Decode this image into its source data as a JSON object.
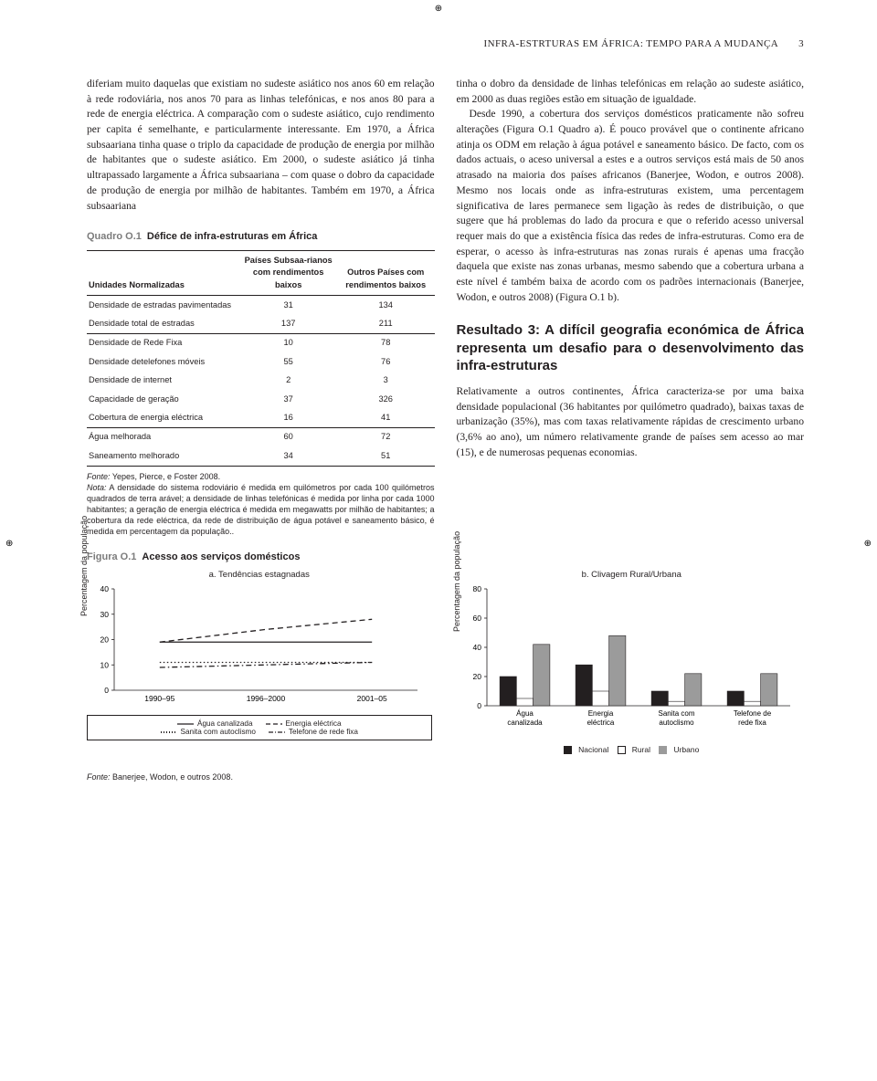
{
  "header": {
    "title": "INFRA-ESTRTURAS EM ÁFRICA: TEMPO PARA A MUDANÇA",
    "page": "3"
  },
  "col1": {
    "para": "diferiam muito daquelas que existiam no sudeste asiático nos anos 60 em relação à rede rodoviária, nos anos 70 para as linhas telefónicas, e nos anos 80 para a rede de energia eléctrica. A comparação com o sudeste asiático, cujo rendimento per capita é semelhante, e particularmente interessante. Em 1970, a África subsaariana tinha quase o triplo da capacidade de produção de energia por milhão de habitantes que o sudeste asiático. Em 2000, o sudeste asiático já tinha ultrapassado largamente a África subsaariana – com quase o dobro da capacidade de produção de energia por milhão de habitantes. Também em 1970, a África subsaariana"
  },
  "quadro": {
    "label_num": "Quadro O.1",
    "label_title": "Défice de infra-estruturas em África",
    "head_c1": "Unidades Normalizadas",
    "head_c2": "Países Subsaa-rianos com rendimentos baixos",
    "head_c3": "Outros Países com rendimentos baixos",
    "rows": [
      {
        "l": "Densidade de estradas pavimentadas",
        "a": "31",
        "b": "134"
      },
      {
        "l": "Densidade total de estradas",
        "a": "137",
        "b": "211"
      },
      {
        "l": "Densidade de Rede Fixa",
        "a": "10",
        "b": "78"
      },
      {
        "l": "Densidade detelefones móveis",
        "a": "55",
        "b": "76"
      },
      {
        "l": "Densidade de internet",
        "a": "2",
        "b": "3"
      },
      {
        "l": "Capacidade de geração",
        "a": "37",
        "b": "326"
      },
      {
        "l": "Cobertura de energia eléctrica",
        "a": "16",
        "b": "41"
      },
      {
        "l": "Água melhorada",
        "a": "60",
        "b": "72"
      },
      {
        "l": "Saneamento melhorado",
        "a": "34",
        "b": "51"
      }
    ],
    "fonte_lbl": "Fonte:",
    "fonte_txt": " Yepes, Pierce, e Foster 2008.",
    "nota_lbl": "Nota:",
    "nota_txt": " A densidade do sistema rodoviário é medida em quilómetros por cada 100 quilómetros quadrados de terra arável; a densidade de linhas telefónicas é medida por linha por cada 1000 habitantes; a geração de energia eléctrica é medida em megawatts por milhão de habitantes; a cobertura da rede eléctrica, da rede de distribuição de água potável e saneamento básico, é medida em percentagem da população.."
  },
  "col2": {
    "para1": "tinha o dobro da densidade de linhas telefónicas em relação ao sudeste asiático, em 2000 as duas regiões estão em situação de igualdade.",
    "para2": "Desde 1990, a cobertura dos serviços domésticos praticamente não sofreu alterações (Figura O.1 Quadro a). É pouco provável que o continente africano atinja os ODM em relação à água potável e saneamento básico. De facto, com os dados actuais, o aceso universal a estes e a outros serviços está mais de 50 anos atrasado na maioria dos países africanos (Banerjee, Wodon, e outros 2008). Mesmo nos locais onde as infra-estruturas existem, uma percentagem significativa de lares permanece sem ligação às redes de distribuição, o que sugere que há problemas do lado da procura e que o referido acesso universal requer mais do que a existência física das redes de infra-estruturas. Como era de esperar, o acesso às infra-estruturas nas zonas rurais é apenas uma fracção daquela que existe nas zonas urbanas, mesmo sabendo que a cobertura urbana a este nível é também baixa de acordo com os padrões internacionais (Banerjee, Wodon, e outros 2008) (Figura O.1 b).",
    "h3": "Resultado 3: A difícil geografia económica de África representa um desafio para o desenvolvimento das infra-estruturas",
    "para3": "Relativamente a outros continentes, África caracteriza-se por uma baixa densidade populacional (36 habitantes por quilómetro quadrado), baixas taxas de urbanização (35%), mas com taxas relativamente rápidas de crescimento urbano (3,6% ao ano), um número relativamente grande de países sem acesso ao mar (15), e de numerosas pequenas economias."
  },
  "figura": {
    "label_num": "Figura O.1",
    "label_title": "Acesso aos serviços domésticos",
    "a_caption": "a. Tendências estagnadas",
    "b_caption": "b. Clivagem Rural/Urbana",
    "ylabel": "Percentagem da população",
    "chart_a": {
      "ylim": [
        0,
        40
      ],
      "ytick_step": 10,
      "x_labels": [
        "1990–95",
        "1996–2000",
        "2001–05"
      ],
      "series": [
        {
          "name": "Água canalizada",
          "style": "solid",
          "color": "#231f20",
          "values": [
            19,
            19,
            19
          ]
        },
        {
          "name": "Energia eléctrica",
          "style": "dashed",
          "color": "#231f20",
          "values": [
            19,
            24,
            28
          ]
        },
        {
          "name": "Sanita com autoclismo",
          "style": "dotted",
          "color": "#231f20",
          "values": [
            11,
            11,
            11
          ]
        },
        {
          "name": "Telefone de rede fixa",
          "style": "dashdot",
          "color": "#231f20",
          "values": [
            9,
            10,
            11
          ]
        }
      ],
      "legend": {
        "col1a": "Água canalizada",
        "col1b": "Sanita com autoclismo",
        "col2a": "Energia eléctrica",
        "col2b": "Telefone de rede fixa"
      }
    },
    "chart_b": {
      "ylim": [
        0,
        80
      ],
      "ytick_step": 20,
      "categories": [
        "Água canalizada",
        "Energia eléctrica",
        "Sanita com autoclismo",
        "Telefone de rede fixa"
      ],
      "groups": [
        "Nacional",
        "Rural",
        "Urbano"
      ],
      "colors": {
        "Nacional": "#231f20",
        "Rural": "#ffffff",
        "Urbano": "#9b9b9b"
      },
      "values": {
        "Nacional": [
          20,
          28,
          10,
          10
        ],
        "Rural": [
          5,
          10,
          3,
          3
        ],
        "Urbano": [
          42,
          48,
          22,
          22
        ]
      }
    },
    "fonte_lbl": "Fonte:",
    "fonte_txt": " Banerjee, Wodon, e outros 2008."
  }
}
